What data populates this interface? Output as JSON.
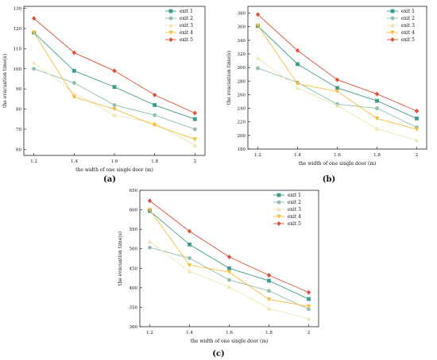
{
  "colors": {
    "exit1": "#3d9c8d",
    "exit2": "#8fbfaa",
    "exit3": "#efe4b0",
    "exit4": "#f5bd3c",
    "exit5": "#e04e35"
  },
  "chart_data": [
    {
      "type": "line",
      "panel_label": "(a)",
      "xlabel": "the width of one single door (m)",
      "ylabel": "the evacuation time(s)",
      "x": [
        1.2,
        1.4,
        1.6,
        1.8,
        2
      ],
      "x_tick_labels": [
        "1.2",
        "1.4",
        "1.6",
        "1.8",
        "2"
      ],
      "xlim": [
        1.15,
        2.05
      ],
      "ylim": [
        57,
        131
      ],
      "yticks": [
        60,
        70,
        80,
        90,
        100,
        110,
        120,
        130
      ],
      "grid": false,
      "legend_position": "top-right",
      "series": [
        {
          "name": "exit 1",
          "values": [
            118,
            99,
            91,
            82,
            75
          ]
        },
        {
          "name": "exit 2",
          "values": [
            100,
            93,
            82,
            77,
            70
          ]
        },
        {
          "name": "exit 3",
          "values": [
            103,
            88,
            77,
            73,
            62
          ]
        },
        {
          "name": "exit 4",
          "values": [
            118,
            86,
            80,
            72,
            65
          ]
        },
        {
          "name": "exit 5",
          "values": [
            125,
            108,
            99,
            87,
            78
          ]
        }
      ]
    },
    {
      "type": "line",
      "panel_label": "(b)",
      "xlabel": "the width of one single door (m)",
      "ylabel": "the evacuation time(s)",
      "x": [
        1.2,
        1.4,
        1.6,
        1.8,
        2
      ],
      "x_tick_labels": [
        "1.2",
        "1.4",
        "1.6",
        "1.8",
        "2"
      ],
      "xlim": [
        1.15,
        2.05
      ],
      "ylim": [
        180,
        390
      ],
      "yticks": [
        180,
        200,
        220,
        240,
        260,
        280,
        300,
        320,
        340,
        360,
        380
      ],
      "grid": false,
      "legend_position": "top-right",
      "series": [
        {
          "name": "exit 1",
          "values": [
            361,
            305,
            270,
            251,
            225
          ]
        },
        {
          "name": "exit 2",
          "values": [
            299,
            278,
            246,
            240,
            212
          ]
        },
        {
          "name": "exit 3",
          "values": [
            314,
            270,
            244,
            210,
            193
          ]
        },
        {
          "name": "exit 4",
          "values": [
            362,
            276,
            265,
            225,
            209
          ]
        },
        {
          "name": "exit 5",
          "values": [
            378,
            325,
            282,
            261,
            236
          ]
        }
      ]
    },
    {
      "type": "line",
      "panel_label": "(c)",
      "xlabel": "the width of one single door (m)",
      "ylabel": "the evacuation time(s)",
      "x": [
        1.2,
        1.4,
        1.6,
        1.8,
        2
      ],
      "x_tick_labels": [
        "1.2",
        "1.4",
        "1.6",
        "1.8",
        "2"
      ],
      "xlim": [
        1.15,
        2.05
      ],
      "ylim": [
        300,
        650
      ],
      "yticks": [
        300,
        350,
        400,
        450,
        500,
        550,
        600,
        650
      ],
      "grid": false,
      "legend_position": "top-right",
      "series": [
        {
          "name": "exit 1",
          "values": [
            597,
            511,
            450,
            418,
            371
          ]
        },
        {
          "name": "exit 2",
          "values": [
            503,
            476,
            420,
            392,
            345
          ]
        },
        {
          "name": "exit 3",
          "values": [
            518,
            442,
            402,
            347,
            320
          ]
        },
        {
          "name": "exit 4",
          "values": [
            600,
            458,
            440,
            370,
            352
          ]
        },
        {
          "name": "exit 5",
          "values": [
            623,
            545,
            479,
            432,
            388
          ]
        }
      ]
    }
  ]
}
